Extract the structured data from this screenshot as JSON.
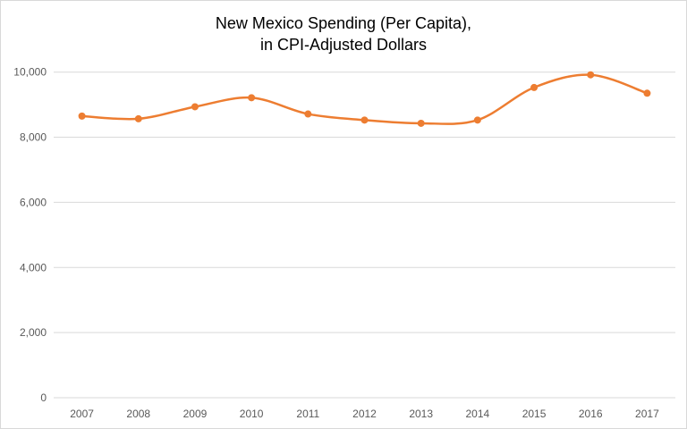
{
  "chart_data": {
    "type": "line",
    "title_line1": "New Mexico Spending (Per Capita),",
    "title_line2": "in CPI-Adjusted Dollars",
    "xlabel": "",
    "ylabel": "",
    "categories": [
      "2007",
      "2008",
      "2009",
      "2010",
      "2011",
      "2012",
      "2013",
      "2014",
      "2015",
      "2016",
      "2017"
    ],
    "series": [
      {
        "name": "New Mexico Spending (Per Capita)",
        "color": "#ED7D31",
        "values": [
          8650,
          8567,
          8936,
          9214,
          8714,
          8528,
          8428,
          8528,
          9528,
          9917,
          9353
        ]
      }
    ],
    "ylim": [
      0,
      10000
    ],
    "yticks": [
      0,
      2000,
      4000,
      6000,
      8000,
      10000
    ],
    "ytick_labels": [
      "0",
      "2,000",
      "4,000",
      "6,000",
      "8,000",
      "10,000"
    ],
    "grid": true,
    "smooth": true,
    "legend": "none"
  }
}
